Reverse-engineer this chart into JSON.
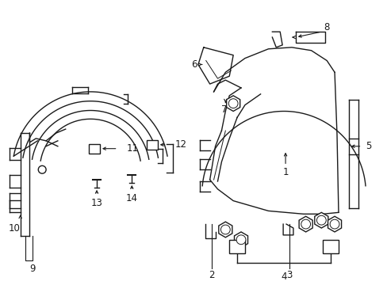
{
  "background_color": "#ffffff",
  "line_color": "#1a1a1a",
  "line_width": 1.0,
  "label_fontsize": 7.5,
  "fig_width": 4.89,
  "fig_height": 3.6,
  "dpi": 100
}
